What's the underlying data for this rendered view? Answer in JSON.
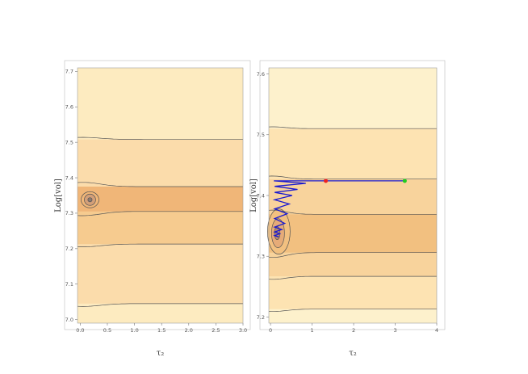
{
  "chart_data": [
    {
      "type": "contour",
      "xlabel": "τ₂",
      "ylabel": "Log[vol]",
      "xlim": [
        -0.05,
        3.0
      ],
      "ylim": [
        6.99,
        7.71
      ],
      "x_ticks": [
        0.0,
        0.5,
        1.0,
        1.5,
        2.0,
        2.5,
        3.0
      ],
      "x_tick_labels": [
        "0.0",
        "0.5",
        "1.0",
        "1.5",
        "2.0",
        "2.5",
        "3.0"
      ],
      "y_ticks": [
        7.0,
        7.1,
        7.2,
        7.3,
        7.4,
        7.5,
        7.6,
        7.7
      ],
      "y_tick_labels": [
        "7.0",
        "7.1",
        "7.2",
        "7.3",
        "7.4",
        "7.5",
        "7.6",
        "7.7"
      ],
      "asymptotic_contour_levels_y": [
        7.045,
        7.213,
        7.305,
        7.375,
        7.508
      ],
      "minimum": {
        "x": 0.18,
        "y": 7.338
      },
      "colors": {
        "outer": "#fdebc0",
        "band1": "#fbdcab",
        "band2": "#f6cb8f",
        "band3": "#f0b678",
        "well": "#d39f78",
        "contour": "#555555"
      }
    },
    {
      "type": "contour",
      "xlabel": "τ₂",
      "ylabel": "Log[vol]",
      "xlim": [
        -0.04,
        4.0
      ],
      "ylim": [
        7.19,
        7.61
      ],
      "x_ticks": [
        0,
        1,
        2,
        3,
        4
      ],
      "x_tick_labels": [
        "0",
        "1",
        "2",
        "3",
        "4"
      ],
      "y_ticks": [
        7.2,
        7.3,
        7.4,
        7.5,
        7.6
      ],
      "y_tick_labels": [
        "7.2",
        "7.3",
        "7.4",
        "7.5",
        "7.6"
      ],
      "asymptotic_contour_levels_y": [
        7.213,
        7.267,
        7.306,
        7.369,
        7.427,
        7.51
      ],
      "minimum": {
        "x": 0.2,
        "y": 7.338
      },
      "trajectory_start": {
        "x": 3.23,
        "y": 7.424,
        "color": "#22cc22"
      },
      "trajectory_mid": {
        "x": 1.33,
        "y": 7.424,
        "color": "#ee2222"
      },
      "trajectory_color": "#1a1ad0",
      "colors": {
        "outer": "#fdf1cc",
        "band1": "#fde3b2",
        "band2": "#f8d39c",
        "band3": "#f2c080",
        "well": "#e6ab78",
        "contour": "#555555"
      }
    }
  ]
}
